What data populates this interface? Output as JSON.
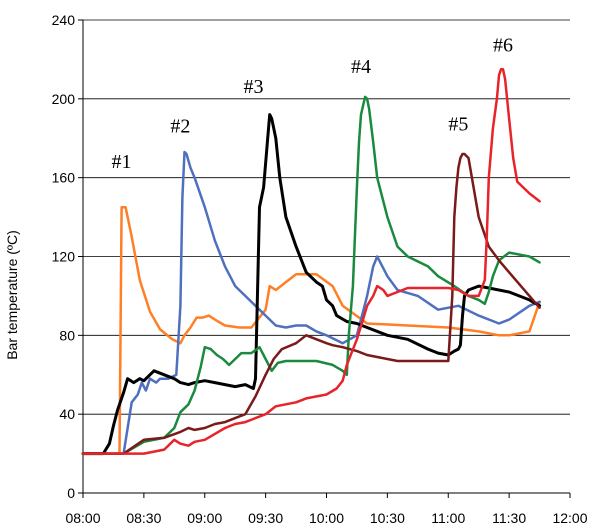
{
  "chart_data": {
    "type": "line",
    "title": "",
    "xlabel": "",
    "ylabel": "Bar temperature (ºC)",
    "xlim": [
      "08:00",
      "12:00"
    ],
    "ylim": [
      0,
      240
    ],
    "x_ticks": [
      "08:00",
      "08:30",
      "09:00",
      "09:30",
      "10:00",
      "10:30",
      "11:00",
      "11:30",
      "12:00"
    ],
    "y_ticks": [
      "0",
      "40",
      "80",
      "120",
      "160",
      "200",
      "240"
    ],
    "grid": "horizontal",
    "legend": "none",
    "annotations": [
      {
        "text": "#1",
        "x": "08:19",
        "y": 165
      },
      {
        "text": "#2",
        "x": "08:48",
        "y": 183
      },
      {
        "text": "#3",
        "x": "09:24",
        "y": 203
      },
      {
        "text": "#4",
        "x": "10:17",
        "y": 213
      },
      {
        "text": "#5",
        "x": "11:05",
        "y": 184
      },
      {
        "text": "#6",
        "x": "11:27",
        "y": 224
      }
    ],
    "series": [
      {
        "color": "#ff7f27",
        "x": [
          "08:00",
          "08:18",
          "08:19",
          "08:20",
          "08:21",
          "08:24",
          "08:28",
          "08:33",
          "08:38",
          "08:44",
          "08:48",
          "08:50",
          "08:53",
          "08:56",
          "08:59",
          "09:02",
          "09:05",
          "09:10",
          "09:17",
          "09:23",
          "09:30",
          "09:32",
          "09:35",
          "09:40",
          "09:45",
          "09:55",
          "10:03",
          "10:08",
          "10:20",
          "10:40",
          "11:00",
          "11:15",
          "11:25",
          "11:30",
          "11:40",
          "11:45"
        ],
        "y": [
          20,
          20,
          145,
          145,
          145,
          130,
          108,
          92,
          83,
          78,
          76,
          80,
          84,
          89,
          89,
          90,
          88,
          85,
          84,
          84,
          93,
          105,
          103,
          107,
          111,
          111,
          105,
          95,
          86,
          85,
          84,
          82,
          80,
          80,
          82,
          97
        ]
      },
      {
        "color": "#4f6fbf",
        "x": [
          "08:00",
          "08:20",
          "08:24",
          "08:27",
          "08:29",
          "08:31",
          "08:33",
          "08:36",
          "08:38",
          "08:40",
          "08:42",
          "08:44",
          "08:46",
          "08:48",
          "08:49",
          "08:50",
          "08:51",
          "08:53",
          "08:55",
          "09:00",
          "09:05",
          "09:10",
          "09:15",
          "09:20",
          "09:25",
          "09:30",
          "09:35",
          "09:40",
          "09:45",
          "09:50",
          "09:55",
          "10:00",
          "10:08",
          "10:15",
          "10:20",
          "10:23",
          "10:25",
          "10:30",
          "10:35",
          "10:45",
          "10:55",
          "11:05",
          "11:15",
          "11:25",
          "11:30",
          "11:40",
          "11:45"
        ],
        "y": [
          20,
          20,
          46,
          50,
          56,
          52,
          58,
          56,
          58,
          58,
          58,
          59,
          60,
          95,
          150,
          173,
          172,
          165,
          160,
          145,
          128,
          115,
          105,
          100,
          95,
          90,
          85,
          84,
          85,
          85,
          82,
          80,
          76,
          80,
          100,
          115,
          120,
          110,
          103,
          100,
          93,
          95,
          90,
          86,
          88,
          95,
          97
        ]
      },
      {
        "color": "#000000",
        "x": [
          "08:00",
          "08:10",
          "08:13",
          "08:15",
          "08:17",
          "08:20",
          "08:22",
          "08:25",
          "08:28",
          "08:30",
          "08:35",
          "08:40",
          "08:45",
          "08:48",
          "08:52",
          "08:55",
          "09:00",
          "09:05",
          "09:10",
          "09:15",
          "09:20",
          "09:24",
          "09:25",
          "09:27",
          "09:29",
          "09:31",
          "09:32",
          "09:33",
          "09:35",
          "09:37",
          "09:40",
          "09:45",
          "09:50",
          "09:55",
          "09:58",
          "10:00",
          "10:03",
          "10:05",
          "10:10",
          "10:15",
          "10:20",
          "10:30",
          "10:40",
          "10:50",
          "10:55",
          "11:00",
          "11:03",
          "11:05",
          "11:06",
          "11:07",
          "11:08",
          "11:10",
          "11:15",
          "11:20",
          "11:30",
          "11:40",
          "11:45"
        ],
        "y": [
          20,
          20,
          25,
          34,
          42,
          51,
          58,
          56,
          58,
          57,
          62,
          60,
          58,
          56,
          55,
          56,
          57,
          56,
          55,
          54,
          55,
          53,
          58,
          145,
          155,
          180,
          192,
          190,
          180,
          160,
          140,
          125,
          112,
          107,
          105,
          98,
          95,
          90,
          87,
          86,
          84,
          80,
          78,
          73,
          71,
          70,
          72,
          73,
          75,
          90,
          100,
          103,
          105,
          104,
          102,
          98,
          95
        ]
      },
      {
        "color": "#1a8a3e",
        "x": [
          "08:00",
          "08:20",
          "08:30",
          "08:40",
          "08:45",
          "08:48",
          "08:52",
          "08:55",
          "08:58",
          "09:00",
          "09:03",
          "09:06",
          "09:09",
          "09:12",
          "09:18",
          "09:23",
          "09:27",
          "09:30",
          "09:33",
          "09:36",
          "09:40",
          "09:45",
          "09:55",
          "10:03",
          "10:08",
          "10:10",
          "10:11",
          "10:13",
          "10:14",
          "10:15",
          "10:16",
          "10:17",
          "10:19",
          "10:20",
          "10:21",
          "10:23",
          "10:25",
          "10:30",
          "10:35",
          "10:40",
          "10:50",
          "10:55",
          "11:03",
          "11:10",
          "11:15",
          "11:18",
          "11:20",
          "11:22",
          "11:25",
          "11:30",
          "11:40",
          "11:45"
        ],
        "y": [
          20,
          20,
          26,
          28,
          33,
          41,
          45,
          52,
          64,
          74,
          73,
          70,
          68,
          65,
          71,
          71,
          74,
          68,
          62,
          66,
          67,
          67,
          67,
          65,
          62,
          60,
          80,
          105,
          130,
          155,
          178,
          192,
          201,
          200,
          195,
          178,
          160,
          140,
          125,
          120,
          115,
          110,
          105,
          100,
          98,
          96,
          102,
          110,
          118,
          122,
          120,
          117
        ]
      },
      {
        "color": "#7a1a1a",
        "x": [
          "08:00",
          "08:20",
          "08:30",
          "08:40",
          "08:48",
          "08:52",
          "08:55",
          "09:00",
          "09:05",
          "09:10",
          "09:15",
          "09:20",
          "09:25",
          "09:30",
          "09:34",
          "09:38",
          "09:45",
          "09:50",
          "10:00",
          "10:03",
          "10:08",
          "10:15",
          "10:20",
          "10:25",
          "10:30",
          "10:35",
          "10:40",
          "10:50",
          "11:00",
          "11:02",
          "11:03",
          "11:04",
          "11:05",
          "11:06",
          "11:07",
          "11:08",
          "11:10",
          "11:15",
          "11:20",
          "11:25",
          "11:30",
          "11:40",
          "11:45"
        ],
        "y": [
          20,
          20,
          27,
          28,
          31,
          33,
          32,
          33,
          35,
          36,
          38,
          40,
          49,
          60,
          68,
          73,
          76,
          80,
          76,
          75,
          74,
          72,
          70,
          69,
          68,
          67,
          67,
          67,
          67,
          100,
          140,
          155,
          165,
          170,
          172,
          172,
          170,
          140,
          125,
          118,
          112,
          100,
          94
        ]
      },
      {
        "color": "#e8232a",
        "x": [
          "08:00",
          "08:30",
          "08:40",
          "08:45",
          "08:48",
          "08:52",
          "08:55",
          "09:00",
          "09:05",
          "09:10",
          "09:15",
          "09:20",
          "09:25",
          "09:30",
          "09:35",
          "09:40",
          "09:45",
          "09:50",
          "10:00",
          "10:05",
          "10:08",
          "10:10",
          "10:15",
          "10:18",
          "10:20",
          "10:23",
          "10:25",
          "10:28",
          "10:30",
          "10:35",
          "10:40",
          "10:50",
          "11:00",
          "11:05",
          "11:10",
          "11:15",
          "11:18",
          "11:19",
          "11:20",
          "11:22",
          "11:24",
          "11:25",
          "11:26",
          "11:27",
          "11:28",
          "11:29",
          "11:30",
          "11:32",
          "11:34",
          "11:40",
          "11:45"
        ],
        "y": [
          20,
          20,
          22,
          27,
          25,
          24,
          26,
          27,
          30,
          33,
          35,
          36,
          38,
          40,
          44,
          45,
          46,
          48,
          50,
          53,
          57,
          65,
          78,
          88,
          95,
          100,
          105,
          103,
          100,
          102,
          104,
          104,
          104,
          103,
          100,
          100,
          108,
          130,
          160,
          185,
          200,
          212,
          215,
          215,
          210,
          200,
          190,
          170,
          158,
          152,
          148
        ]
      }
    ]
  }
}
